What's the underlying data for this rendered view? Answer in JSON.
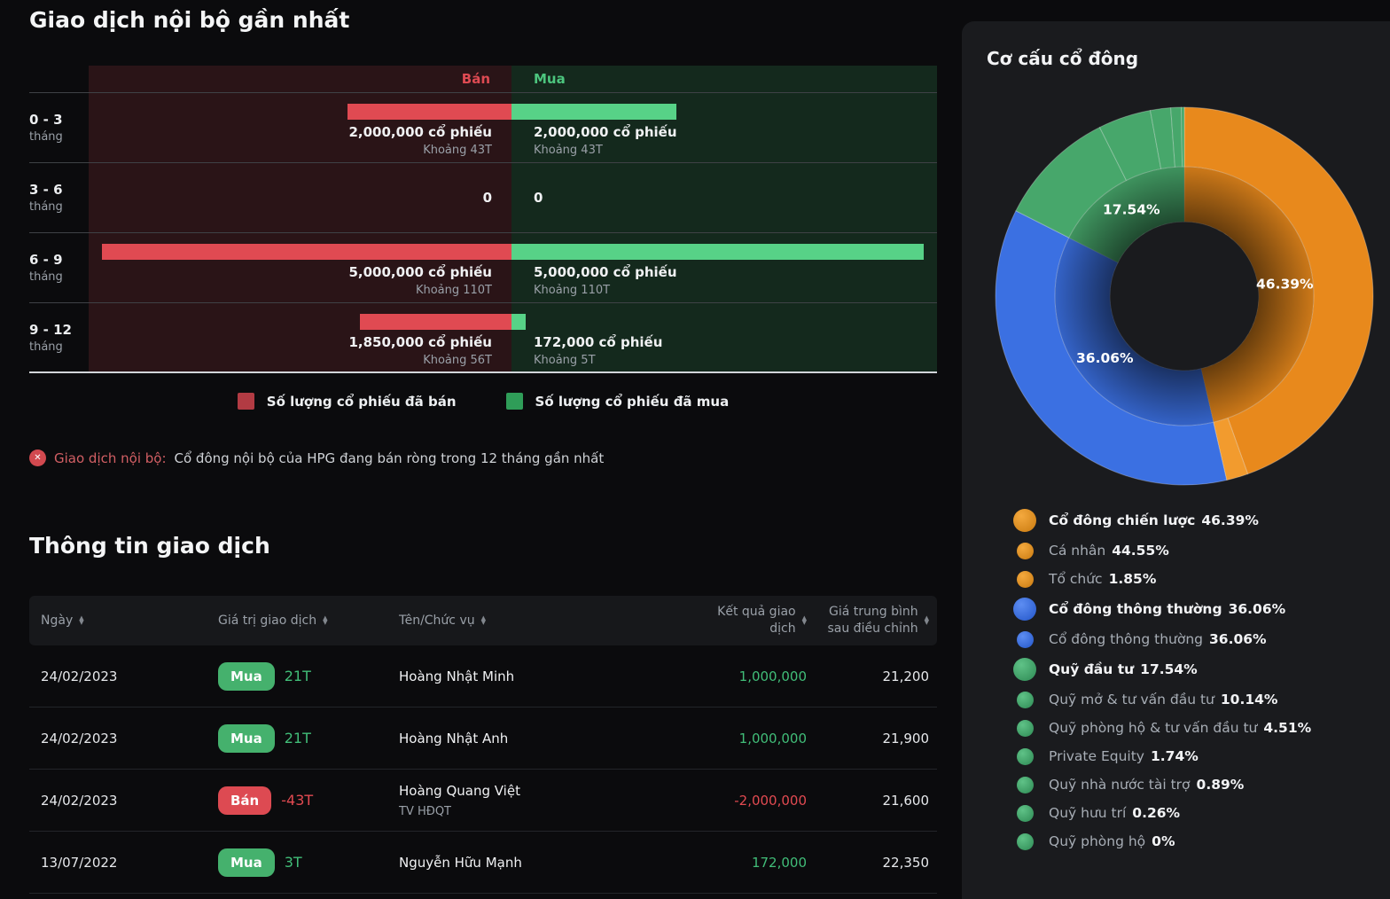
{
  "insider": {
    "title": "Giao dịch nội bộ gần nhất",
    "sell_header": "Bán",
    "buy_header": "Mua",
    "rows": [
      {
        "period": "0 - 3",
        "period_unit": "tháng",
        "sell_shares": 2000000,
        "sell_label": "2,000,000 cổ phiếu",
        "sell_approx": "Khoảng 43T",
        "buy_shares": 2000000,
        "buy_label": "2,000,000 cổ phiếu",
        "buy_approx": "Khoảng 43T"
      },
      {
        "period": "3 - 6",
        "period_unit": "tháng",
        "sell_shares": 0,
        "sell_label": "0",
        "sell_approx": "",
        "buy_shares": 0,
        "buy_label": "0",
        "buy_approx": ""
      },
      {
        "period": "6 - 9",
        "period_unit": "tháng",
        "sell_shares": 5000000,
        "sell_label": "5,000,000 cổ phiếu",
        "sell_approx": "Khoảng 110T",
        "buy_shares": 5000000,
        "buy_label": "5,000,000 cổ phiếu",
        "buy_approx": "Khoảng 110T"
      },
      {
        "period": "9 - 12",
        "period_unit": "tháng",
        "sell_shares": 1850000,
        "sell_label": "1,850,000 cổ phiếu",
        "sell_approx": "Khoảng 56T",
        "buy_shares": 172000,
        "buy_label": "172,000 cổ phiếu",
        "buy_approx": "Khoảng 5T"
      }
    ],
    "legend": [
      {
        "label": "Số lượng cổ phiếu đã bán",
        "color": "#b23b43"
      },
      {
        "label": "Số lượng cổ phiếu đã mua",
        "color": "#2f9d58"
      }
    ],
    "note_label": "Giao dịch nội bộ:",
    "note_text": "Cổ đông nội bộ của HPG đang bán ròng trong 12 tháng gần nhất"
  },
  "transactions": {
    "title": "Thông tin giao dịch",
    "columns": [
      {
        "label": "Ngày",
        "align": "left"
      },
      {
        "label": "Giá trị giao dịch",
        "align": "left"
      },
      {
        "label": "Tên/Chức vụ",
        "align": "left"
      },
      {
        "label": "Kết quả giao dịch",
        "align": "right"
      },
      {
        "label": "Giá trung bình sau điều chỉnh",
        "align": "right"
      }
    ],
    "rows": [
      {
        "date": "24/02/2023",
        "side": "Mua",
        "side_type": "buy",
        "value": "21T",
        "name": "Hoàng Nhật Minh",
        "role": "",
        "result": "1,000,000",
        "avg_price": "21,200"
      },
      {
        "date": "24/02/2023",
        "side": "Mua",
        "side_type": "buy",
        "value": "21T",
        "name": "Hoàng Nhật Anh",
        "role": "",
        "result": "1,000,000",
        "avg_price": "21,900"
      },
      {
        "date": "24/02/2023",
        "side": "Bán",
        "side_type": "sell",
        "value": "-43T",
        "name": "Hoàng Quang Việt",
        "role": "TV HĐQT",
        "result": "-2,000,000",
        "avg_price": "21,600"
      },
      {
        "date": "13/07/2022",
        "side": "Mua",
        "side_type": "buy",
        "value": "3T",
        "name": "Nguyễn Hữu Mạnh",
        "role": "",
        "result": "172,000",
        "avg_price": "22,350"
      }
    ]
  },
  "ownership": {
    "title": "Cơ cấu cổ đông",
    "legend": [
      {
        "tier": "main",
        "color": "orange",
        "label": "Cổ đông chiến lược",
        "pct": "46.39%"
      },
      {
        "tier": "sub",
        "color": "orange",
        "label": "Cá nhân",
        "pct": "44.55%"
      },
      {
        "tier": "sub",
        "color": "orange",
        "label": "Tổ chức",
        "pct": "1.85%"
      },
      {
        "tier": "main",
        "color": "blue",
        "label": "Cổ đông thông thường",
        "pct": "36.06%"
      },
      {
        "tier": "sub",
        "color": "blue",
        "label": "Cổ đông thông thường",
        "pct": "36.06%"
      },
      {
        "tier": "main",
        "color": "green",
        "label": "Quỹ đầu tư",
        "pct": "17.54%"
      },
      {
        "tier": "sub",
        "color": "green",
        "label": "Quỹ mở & tư vấn đầu tư",
        "pct": "10.14%"
      },
      {
        "tier": "sub",
        "color": "green",
        "label": "Quỹ phòng hộ & tư vấn đầu tư",
        "pct": "4.51%"
      },
      {
        "tier": "sub",
        "color": "green",
        "label": "Private Equity",
        "pct": "1.74%"
      },
      {
        "tier": "sub",
        "color": "green",
        "label": "Quỹ nhà nước tài trợ",
        "pct": "0.89%"
      },
      {
        "tier": "sub",
        "color": "green",
        "label": "Quỹ hưu trí",
        "pct": "0.26%"
      },
      {
        "tier": "sub",
        "color": "green",
        "label": "Quỹ phòng hộ",
        "pct": "0%"
      }
    ]
  },
  "chart_data": [
    {
      "type": "bar",
      "title": "Giao dịch nội bộ gần nhất",
      "orientation": "horizontal-diverging",
      "categories": [
        "0 - 3 tháng",
        "3 - 6 tháng",
        "6 - 9 tháng",
        "9 - 12 tháng"
      ],
      "series": [
        {
          "name": "Số lượng cổ phiếu đã bán",
          "color": "#e04a52",
          "values": [
            2000000,
            0,
            5000000,
            1850000
          ],
          "value_labels_vnd": [
            "Khoảng 43T",
            "",
            "Khoảng 110T",
            "Khoảng 56T"
          ]
        },
        {
          "name": "Số lượng cổ phiếu đã mua",
          "color": "#57d287",
          "values": [
            2000000,
            0,
            5000000,
            172000
          ],
          "value_labels_vnd": [
            "Khoảng 43T",
            "",
            "Khoảng 110T",
            "Khoảng 5T"
          ]
        }
      ],
      "xlabel": "",
      "ylabel": "",
      "xlim": [
        0,
        5000000
      ],
      "grid": false
    },
    {
      "type": "pie",
      "subtype": "sunburst",
      "title": "Cơ cấu cổ đông",
      "inner": [
        {
          "label": "Cổ đông chiến lược",
          "pct": 46.39,
          "pct_label": "46.39%",
          "color": "#e8891c"
        },
        {
          "label": "Cổ đông thông thường",
          "pct": 36.06,
          "pct_label": "36.06%",
          "color": "#3b70e2"
        },
        {
          "label": "Quỹ đầu tư",
          "pct": 17.54,
          "pct_label": "17.54%",
          "color": "#47a76b"
        }
      ],
      "outer": [
        {
          "label": "Cá nhân",
          "pct": 44.55,
          "color": "#e8891c"
        },
        {
          "label": "Tổ chức",
          "pct": 1.85,
          "color": "#f29b2e"
        },
        {
          "label": "Cổ đông thông thường",
          "pct": 36.06,
          "color": "#3b70e2"
        },
        {
          "label": "Quỹ mở & tư vấn đầu tư",
          "pct": 10.14,
          "color": "#47a76b"
        },
        {
          "label": "Quỹ phòng hộ & tư vấn đầu tư",
          "pct": 4.51,
          "color": "#47a76b"
        },
        {
          "label": "Private Equity",
          "pct": 1.74,
          "color": "#47a76b"
        },
        {
          "label": "Quỹ nhà nước tài trợ",
          "pct": 0.89,
          "color": "#47a76b"
        },
        {
          "label": "Quỹ hưu trí",
          "pct": 0.26,
          "color": "#47a76b"
        },
        {
          "label": "Quỹ phòng hộ",
          "pct": 0,
          "color": "#47a76b"
        }
      ],
      "legend_position": "bottom"
    }
  ]
}
